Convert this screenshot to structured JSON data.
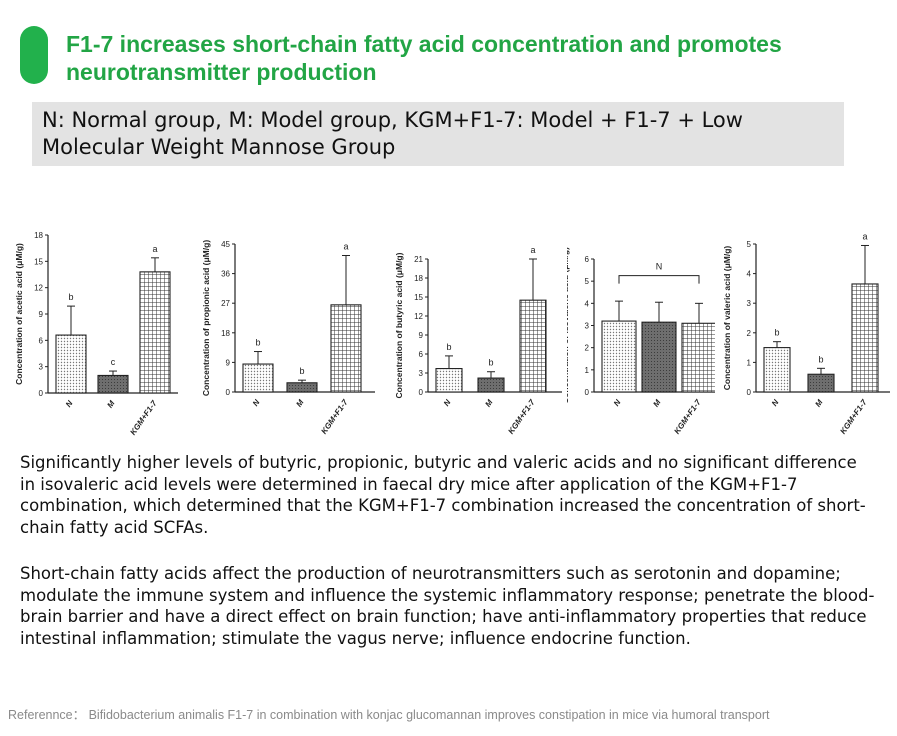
{
  "slide": {
    "title": "F1-7 increases short-chain fatty acid concentration and promotes neurotransmitter production",
    "legend": "N: Normal group, M: Model group, KGM+F1-7: Model + F1-7 + Low Molecular Weight Mannose Group",
    "paragraph1": "Significantly higher levels of butyric, propionic, butyric and valeric acids and no significant difference in isovaleric acid levels were determined in faecal dry mice after application of the KGM+F1-7 combination, which determined that the KGM+F1-7 combination increased the concentration of short-chain fatty acid SCFAs.",
    "paragraph2": "Short-chain fatty acids affect the production of neurotransmitters such as serotonin and dopamine; modulate the immune system and influence the systemic inflammatory response; penetrate the blood-brain barrier and have a direct effect on brain function; have anti-inflammatory properties that reduce intestinal inflammation; stimulate the vagus nerve; influence endocrine function.",
    "reference": "Referennce： Bifidobacterium animalis F1-7 in combination with konjac glucomannan improves constipation in mice via humoral transport"
  },
  "colors": {
    "accent": "#22b14c",
    "title": "#22a545",
    "legend_bg": "#e3e3e3",
    "reference": "#8a8a8a"
  },
  "chart_data": [
    {
      "type": "bar",
      "ylabel": "Concentration of acetic acid (μM/g)",
      "categories": [
        "N",
        "M",
        "KGM+F1-7"
      ],
      "values": [
        6.6,
        2.0,
        13.8
      ],
      "errors": [
        3.3,
        0.5,
        1.6
      ],
      "letters": [
        "b",
        "c",
        "a"
      ],
      "ylim": [
        0,
        18
      ],
      "yticks": [
        "0",
        "3",
        "6",
        "9",
        "12",
        "15",
        "18"
      ]
    },
    {
      "type": "bar",
      "ylabel": "Concentration of propionic acid (μM/g)",
      "categories": [
        "N",
        "M",
        "KGM+F1-7"
      ],
      "values": [
        8.5,
        2.8,
        26.5
      ],
      "errors": [
        3.8,
        0.8,
        15.0
      ],
      "letters": [
        "b",
        "b",
        "a"
      ],
      "ylim": [
        0,
        45
      ],
      "yticks": [
        "0",
        "9",
        "18",
        "27",
        "36",
        "45"
      ]
    },
    {
      "type": "bar",
      "ylabel": "Concentration of butyric acid (μM/g)",
      "categories": [
        "N",
        "M",
        "KGM+F1-7"
      ],
      "values": [
        3.7,
        2.2,
        14.5
      ],
      "errors": [
        2.0,
        1.0,
        6.5
      ],
      "letters": [
        "b",
        "b",
        "a"
      ],
      "ylim": [
        0,
        21
      ],
      "yticks": [
        "0",
        "3",
        "6",
        "9",
        "12",
        "15",
        "18",
        "21"
      ]
    },
    {
      "type": "bar",
      "ylabel": "Concentration of isovaleric acid (μM/g)",
      "categories": [
        "N",
        "M",
        "KGM+F1-7"
      ],
      "values": [
        3.2,
        3.15,
        3.1
      ],
      "errors": [
        0.9,
        0.9,
        0.9
      ],
      "letters": [
        "",
        "",
        ""
      ],
      "bracket": "N",
      "ylim": [
        0,
        6
      ],
      "yticks": [
        "0",
        "1",
        "2",
        "3",
        "4",
        "5",
        "6"
      ]
    },
    {
      "type": "bar",
      "ylabel": "Concentration of valeric acid (μM/g)",
      "categories": [
        "N",
        "M",
        "KGM+F1-7"
      ],
      "values": [
        1.5,
        0.6,
        3.65
      ],
      "errors": [
        0.2,
        0.2,
        1.3
      ],
      "letters": [
        "b",
        "b",
        "a"
      ],
      "ylim": [
        0,
        5
      ],
      "yticks": [
        "0",
        "1",
        "2",
        "3",
        "4",
        "5"
      ]
    }
  ]
}
